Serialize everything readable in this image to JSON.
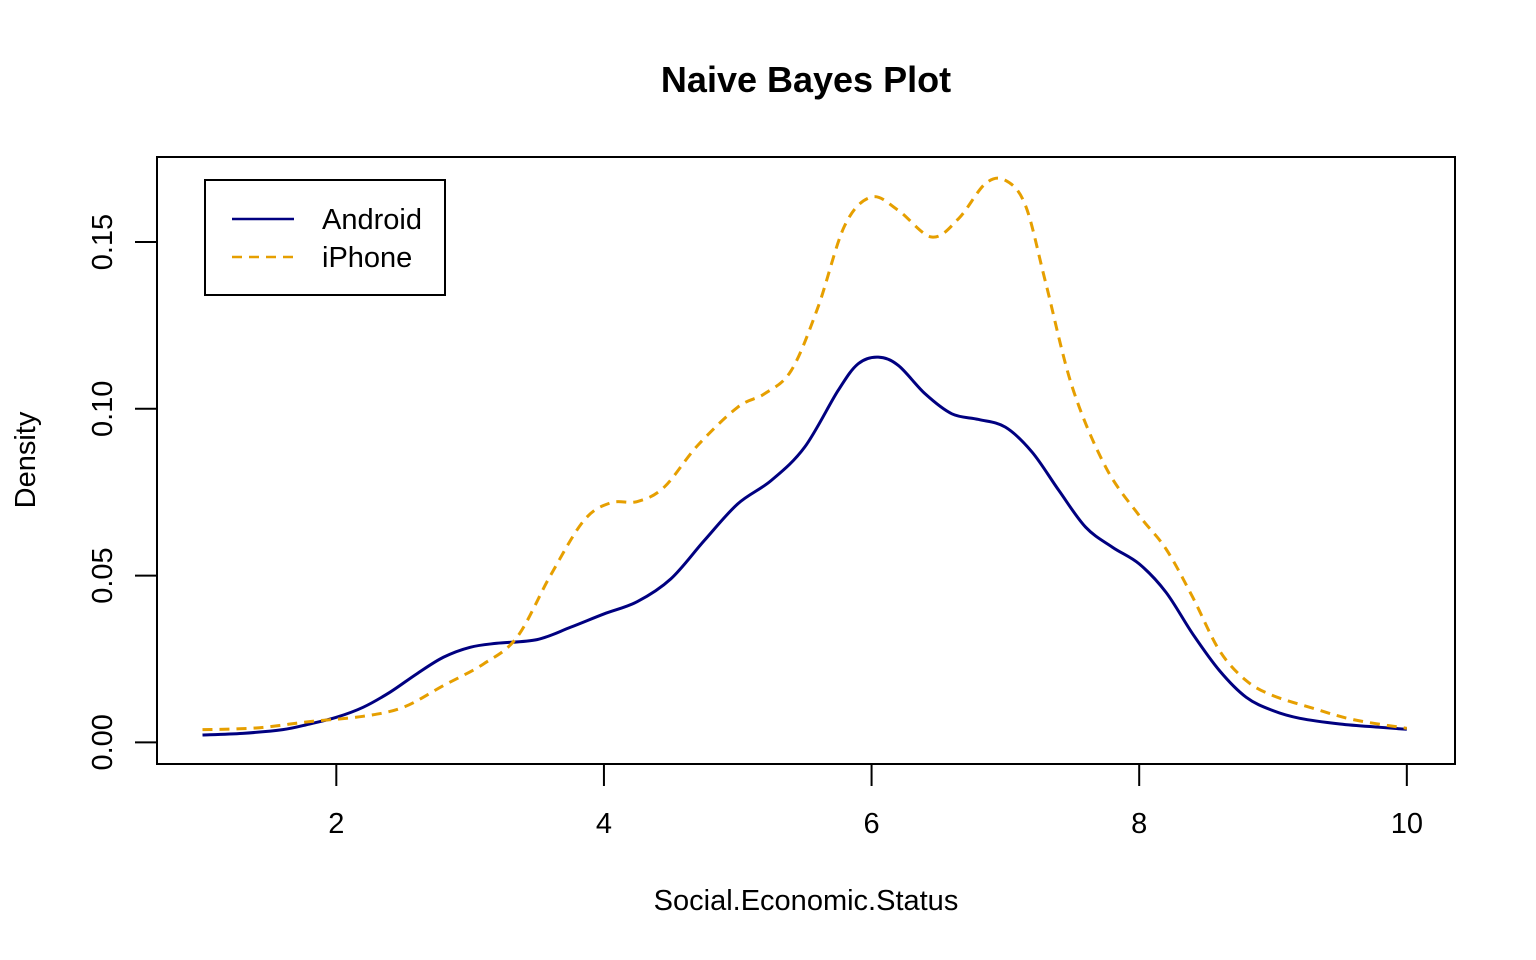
{
  "chart_data": {
    "type": "line",
    "title": "Naive Bayes Plot",
    "xlabel": "Social.Economic.Status",
    "ylabel": "Density",
    "xlim": [
      0.66,
      10.36
    ],
    "ylim": [
      -0.0065,
      0.1755
    ],
    "x_ticks": [
      2,
      4,
      6,
      8,
      10
    ],
    "x_tick_labels": [
      "2",
      "4",
      "6",
      "8",
      "10"
    ],
    "y_ticks": [
      0.0,
      0.05,
      0.1,
      0.15
    ],
    "y_tick_labels": [
      "0.00",
      "0.05",
      "0.10",
      "0.15"
    ],
    "grid": false,
    "legend_position": "top-left",
    "series": [
      {
        "name": "Android",
        "color": "#000080",
        "line_style": "solid",
        "points": [
          [
            1.0,
            0.0022
          ],
          [
            1.3,
            0.0027
          ],
          [
            1.6,
            0.0038
          ],
          [
            1.8,
            0.0055
          ],
          [
            2.0,
            0.0075
          ],
          [
            2.2,
            0.0105
          ],
          [
            2.4,
            0.015
          ],
          [
            2.6,
            0.0205
          ],
          [
            2.8,
            0.0255
          ],
          [
            3.0,
            0.0285
          ],
          [
            3.2,
            0.0297
          ],
          [
            3.5,
            0.0308
          ],
          [
            3.75,
            0.0345
          ],
          [
            4.0,
            0.0385
          ],
          [
            4.25,
            0.0422
          ],
          [
            4.5,
            0.049
          ],
          [
            4.75,
            0.0605
          ],
          [
            5.0,
            0.0715
          ],
          [
            5.25,
            0.0785
          ],
          [
            5.5,
            0.0885
          ],
          [
            5.75,
            0.1055
          ],
          [
            5.9,
            0.1135
          ],
          [
            6.05,
            0.1155
          ],
          [
            6.2,
            0.113
          ],
          [
            6.4,
            0.1045
          ],
          [
            6.6,
            0.0985
          ],
          [
            6.8,
            0.0968
          ],
          [
            7.0,
            0.0945
          ],
          [
            7.2,
            0.087
          ],
          [
            7.4,
            0.0755
          ],
          [
            7.6,
            0.0645
          ],
          [
            7.8,
            0.0585
          ],
          [
            8.0,
            0.0535
          ],
          [
            8.2,
            0.045
          ],
          [
            8.4,
            0.0325
          ],
          [
            8.6,
            0.0215
          ],
          [
            8.8,
            0.0135
          ],
          [
            9.0,
            0.0095
          ],
          [
            9.2,
            0.0072
          ],
          [
            9.5,
            0.0055
          ],
          [
            9.8,
            0.0045
          ],
          [
            10.0,
            0.0039
          ]
        ]
      },
      {
        "name": "iPhone",
        "color": "#E69F00",
        "line_style": "dashed",
        "points": [
          [
            1.0,
            0.0038
          ],
          [
            1.4,
            0.0043
          ],
          [
            1.8,
            0.0062
          ],
          [
            2.2,
            0.0078
          ],
          [
            2.5,
            0.0105
          ],
          [
            2.8,
            0.017
          ],
          [
            3.1,
            0.0235
          ],
          [
            3.35,
            0.0315
          ],
          [
            3.6,
            0.05
          ],
          [
            3.85,
            0.0665
          ],
          [
            4.05,
            0.0718
          ],
          [
            4.25,
            0.0722
          ],
          [
            4.45,
            0.0765
          ],
          [
            4.7,
            0.089
          ],
          [
            5.0,
            0.1005
          ],
          [
            5.2,
            0.1045
          ],
          [
            5.4,
            0.1115
          ],
          [
            5.6,
            0.1305
          ],
          [
            5.8,
            0.155
          ],
          [
            6.0,
            0.1635
          ],
          [
            6.2,
            0.1595
          ],
          [
            6.45,
            0.1515
          ],
          [
            6.65,
            0.157
          ],
          [
            6.85,
            0.1675
          ],
          [
            7.0,
            0.1685
          ],
          [
            7.15,
            0.161
          ],
          [
            7.3,
            0.138
          ],
          [
            7.5,
            0.1065
          ],
          [
            7.75,
            0.0825
          ],
          [
            8.0,
            0.068
          ],
          [
            8.2,
            0.058
          ],
          [
            8.4,
            0.0435
          ],
          [
            8.6,
            0.0275
          ],
          [
            8.8,
            0.0185
          ],
          [
            9.0,
            0.014
          ],
          [
            9.3,
            0.0102
          ],
          [
            9.6,
            0.0068
          ],
          [
            10.0,
            0.0042
          ]
        ]
      }
    ]
  }
}
